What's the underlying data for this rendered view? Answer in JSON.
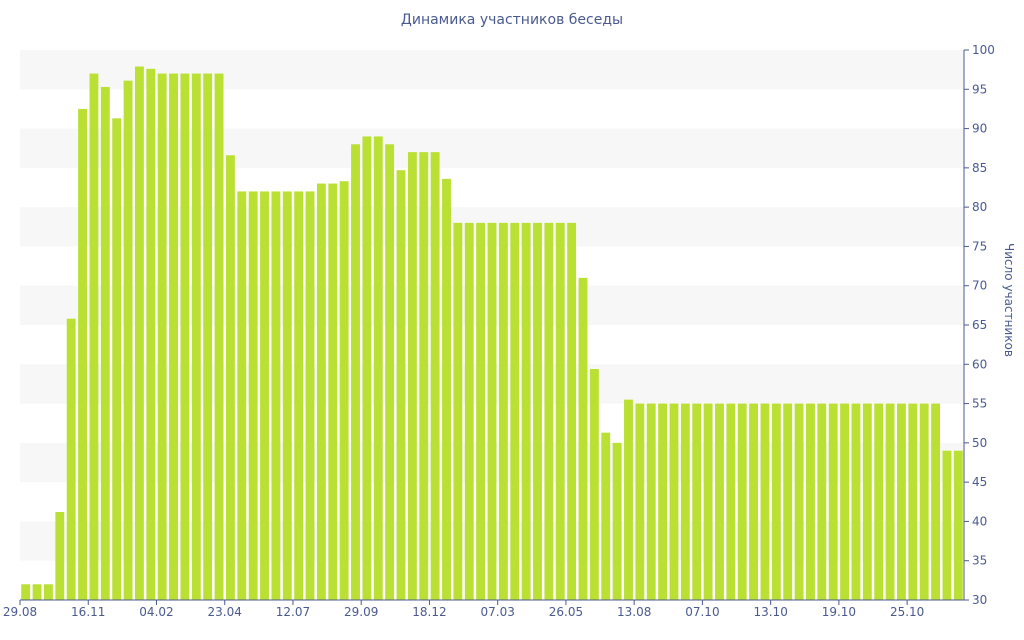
{
  "chart_data": {
    "type": "bar",
    "title": "Динамика участников беседы",
    "xlabel": "",
    "ylabel": "Число участников",
    "ylim": [
      30,
      100
    ],
    "yticks": [
      30,
      35,
      40,
      45,
      50,
      55,
      60,
      65,
      70,
      75,
      80,
      85,
      90,
      95,
      100
    ],
    "y_axis_position": "right",
    "grid": "horizontal bands",
    "x_tick_labels": [
      {
        "index": 0,
        "label": "29.08"
      },
      {
        "index": 6,
        "label": "16.11"
      },
      {
        "index": 12,
        "label": "04.02"
      },
      {
        "index": 18,
        "label": "23.04"
      },
      {
        "index": 24,
        "label": "12.07"
      },
      {
        "index": 30,
        "label": "29.09"
      },
      {
        "index": 36,
        "label": "18.12"
      },
      {
        "index": 42,
        "label": "07.03"
      },
      {
        "index": 48,
        "label": "26.05"
      },
      {
        "index": 54,
        "label": "13.08"
      },
      {
        "index": 60,
        "label": "07.10"
      },
      {
        "index": 66,
        "label": "13.10"
      },
      {
        "index": 72,
        "label": "19.10"
      },
      {
        "index": 78,
        "label": "25.10"
      }
    ],
    "values": [
      32,
      32,
      32,
      41.2,
      65.8,
      92.5,
      97,
      95.3,
      91.3,
      96.1,
      97.9,
      97.6,
      97,
      97,
      97,
      97,
      97,
      97,
      86.6,
      82,
      82,
      82,
      82,
      82,
      82,
      82,
      83,
      83,
      83.3,
      88,
      89,
      89,
      88,
      84.7,
      87,
      87,
      87,
      83.6,
      78,
      78,
      78,
      78,
      78,
      78,
      78,
      78,
      78,
      78,
      78,
      71,
      59.4,
      51.3,
      50,
      55.5,
      55,
      55,
      55,
      55,
      55,
      55,
      55,
      55,
      55,
      55,
      55,
      55,
      55,
      55,
      55,
      55,
      55,
      55,
      55,
      55,
      55,
      55,
      55,
      55,
      55,
      55,
      55,
      49,
      49
    ],
    "colors": {
      "bar": "#b9e033",
      "axis": "#4a5a90",
      "band": "#f7f7f7"
    }
  }
}
